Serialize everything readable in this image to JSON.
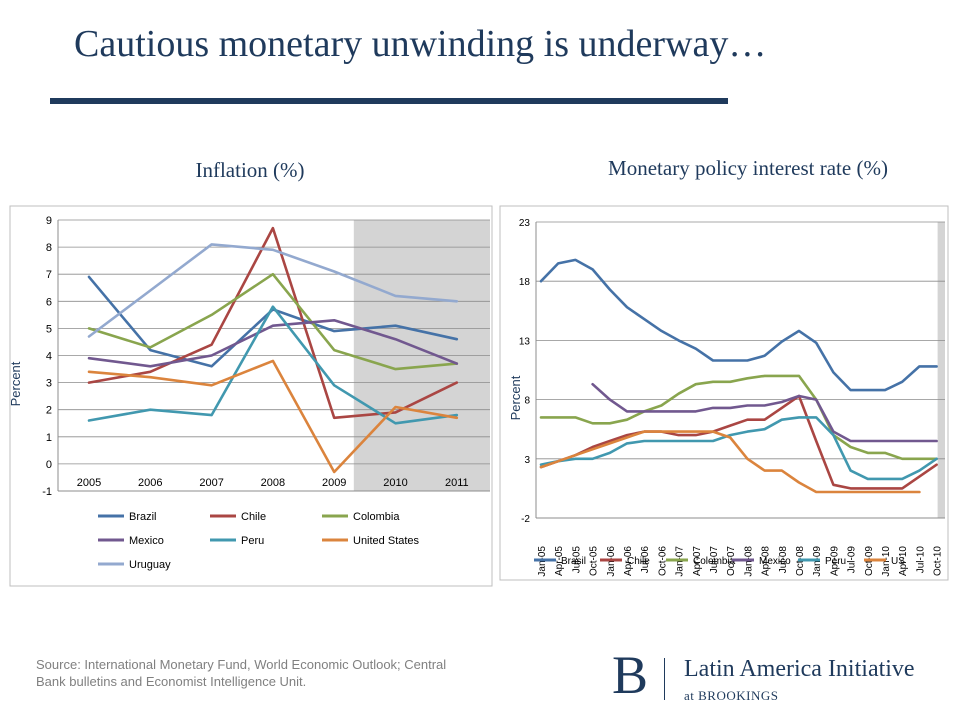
{
  "slide": {
    "title": "Cautious monetary unwinding is underway…",
    "source": "Source: International Monetary Fund, World Economic Outlook; Central Bank bulletins and Economist Intelligence Unit.",
    "logo_letter": "B",
    "logo_name": "Latin America Initiative",
    "logo_sub_prefix": "at ",
    "logo_sub_org": "BROOKINGS",
    "title_color": "#1f3a5c"
  },
  "chart_data": [
    {
      "type": "line",
      "title": "Inflation (%)",
      "ylabel": "Percent",
      "xlabel": "",
      "categories": [
        "2005",
        "2006",
        "2007",
        "2008",
        "2009",
        "2010",
        "2011"
      ],
      "ylim": [
        -1,
        9
      ],
      "yticks": [
        -1,
        0,
        1,
        2,
        3,
        4,
        5,
        6,
        7,
        8,
        9
      ],
      "shaded_from": "2010",
      "legend_position": "bottom",
      "series": [
        {
          "name": "Brazil",
          "color": "#4572a7",
          "values": [
            6.9,
            4.2,
            3.6,
            5.7,
            4.9,
            5.1,
            4.6
          ]
        },
        {
          "name": "Chile",
          "color": "#aa4643",
          "values": [
            3.0,
            3.4,
            4.4,
            8.7,
            1.7,
            1.9,
            3.0
          ]
        },
        {
          "name": "Colombia",
          "color": "#89a54e",
          "values": [
            5.0,
            4.3,
            5.5,
            7.0,
            4.2,
            3.5,
            3.7
          ]
        },
        {
          "name": "Mexico",
          "color": "#71588f",
          "values": [
            3.9,
            3.6,
            4.0,
            5.1,
            5.3,
            4.6,
            3.7
          ]
        },
        {
          "name": "Peru",
          "color": "#4198af",
          "values": [
            1.6,
            2.0,
            1.8,
            5.8,
            2.9,
            1.5,
            1.8
          ]
        },
        {
          "name": "United States",
          "color": "#db843d",
          "values": [
            3.4,
            3.2,
            2.9,
            3.8,
            -0.3,
            2.1,
            1.7
          ]
        },
        {
          "name": "Uruguay",
          "color": "#93a9cf",
          "values": [
            4.7,
            6.4,
            8.1,
            7.9,
            7.1,
            6.2,
            6.0
          ]
        }
      ]
    },
    {
      "type": "line",
      "title": "Monetary policy interest rate (%)",
      "ylabel": "Percent",
      "xlabel": "",
      "x": [
        "Jan-05",
        "Apr-05",
        "Jul-05",
        "Oct-05",
        "Jan-06",
        "Apr-06",
        "Jul-06",
        "Oct-06",
        "Jan-07",
        "Apr-07",
        "Jul-07",
        "Oct-07",
        "Jan-08",
        "Apr-08",
        "Jul-08",
        "Oct-08",
        "Jan-09",
        "Apr-09",
        "Jul-09",
        "Oct-09",
        "Jan-10",
        "Apr-10",
        "Jul-10",
        "Oct-10"
      ],
      "ylim": [
        -2,
        23
      ],
      "yticks": [
        -2,
        3,
        8,
        13,
        18,
        23
      ],
      "shaded_from": "Oct-10",
      "legend_position": "bottom",
      "series": [
        {
          "name": "Brasil",
          "color": "#4572a7",
          "values": [
            18.0,
            19.5,
            19.8,
            19.0,
            17.3,
            15.8,
            14.8,
            13.8,
            13.0,
            12.3,
            11.3,
            11.3,
            11.3,
            11.7,
            12.9,
            13.8,
            12.8,
            10.3,
            8.8,
            8.8,
            8.8,
            9.5,
            10.8,
            10.8
          ]
        },
        {
          "name": "Chile",
          "color": "#aa4643",
          "values": [
            2.3,
            2.8,
            3.3,
            4.0,
            4.5,
            5.0,
            5.3,
            5.3,
            5.0,
            5.0,
            5.3,
            5.8,
            6.3,
            6.3,
            7.3,
            8.3,
            4.5,
            0.8,
            0.5,
            0.5,
            0.5,
            0.5,
            1.5,
            2.5
          ]
        },
        {
          "name": "Colombia",
          "color": "#89a54e",
          "values": [
            6.5,
            6.5,
            6.5,
            6.0,
            6.0,
            6.3,
            7.0,
            7.5,
            8.5,
            9.3,
            9.5,
            9.5,
            9.8,
            10.0,
            10.0,
            10.0,
            8.0,
            5.0,
            4.0,
            3.5,
            3.5,
            3.0,
            3.0,
            3.0
          ]
        },
        {
          "name": "Mexico",
          "color": "#71588f",
          "values": [
            null,
            null,
            null,
            9.3,
            8.0,
            7.0,
            7.0,
            7.0,
            7.0,
            7.0,
            7.3,
            7.3,
            7.5,
            7.5,
            7.8,
            8.3,
            8.0,
            5.3,
            4.5,
            4.5,
            4.5,
            4.5,
            4.5,
            4.5
          ]
        },
        {
          "name": "Peru",
          "color": "#4198af",
          "values": [
            2.5,
            2.8,
            3.0,
            3.0,
            3.5,
            4.3,
            4.5,
            4.5,
            4.5,
            4.5,
            4.5,
            5.0,
            5.3,
            5.5,
            6.3,
            6.5,
            6.5,
            5.0,
            2.0,
            1.3,
            1.3,
            1.3,
            2.0,
            3.0
          ]
        },
        {
          "name": "US",
          "color": "#db843d",
          "values": [
            2.3,
            2.8,
            3.3,
            3.8,
            4.3,
            4.8,
            5.3,
            5.3,
            5.3,
            5.3,
            5.3,
            4.8,
            3.0,
            2.0,
            2.0,
            1.0,
            0.2,
            0.2,
            0.2,
            0.2,
            0.2,
            0.2,
            0.2,
            null
          ]
        }
      ]
    }
  ]
}
